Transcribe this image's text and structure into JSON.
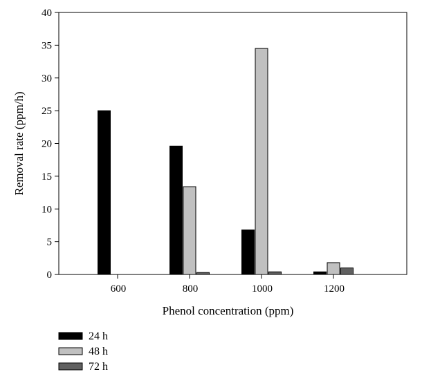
{
  "chart_data": {
    "type": "bar",
    "categories": [
      "600",
      "800",
      "1000",
      "1200"
    ],
    "series": [
      {
        "name": "24 h",
        "values": [
          25.0,
          19.6,
          6.8,
          0.4
        ],
        "color": "#000000"
      },
      {
        "name": "48 h",
        "values": [
          0,
          13.4,
          34.5,
          1.8
        ],
        "color": "#c0c0c0"
      },
      {
        "name": "72 h",
        "values": [
          0,
          0.3,
          0.4,
          1.0
        ],
        "color": "#606060"
      }
    ],
    "xlabel": "Phenol concentration (ppm)",
    "ylabel": "Removal rate (ppm/h)",
    "ylim": [
      0,
      40
    ],
    "yticks": [
      "0",
      "5",
      "10",
      "15",
      "20",
      "25",
      "30",
      "35",
      "40"
    ],
    "grid": false,
    "legend_position": "bottom-left"
  }
}
